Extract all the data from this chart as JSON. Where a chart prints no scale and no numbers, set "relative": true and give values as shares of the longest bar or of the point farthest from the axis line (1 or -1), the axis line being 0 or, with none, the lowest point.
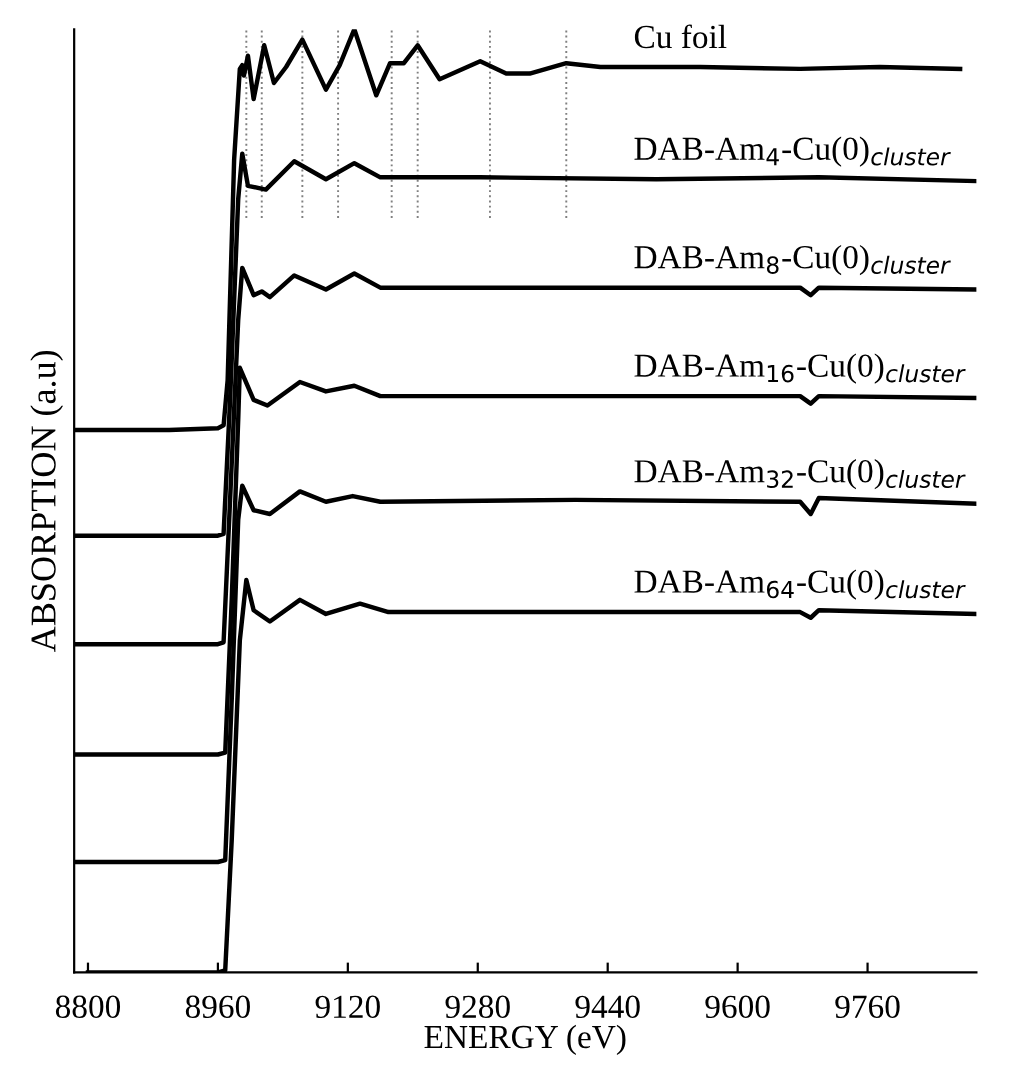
{
  "chart_data": {
    "type": "line",
    "relative": true,
    "xlabel": "ENERGY (eV)",
    "ylabel": "ABSORPTION (a.u)",
    "xlim": [
      8783,
      9894
    ],
    "xticks": [
      8800,
      8960,
      9120,
      9280,
      9440,
      9600,
      9760
    ],
    "grid": false,
    "legend": false,
    "marker": "none",
    "line_style": "solid",
    "series": [
      {
        "name": "Cu foil",
        "color": "#000000",
        "x": [
          8783,
          8900,
          8960,
          8967,
          8972,
          8980,
          8987,
          8990,
          8992,
          8997,
          9004,
          9017,
          9029,
          9044,
          9064,
          9093,
          9110,
          9128,
          9155,
          9172,
          9189,
          9206,
          9233,
          9283,
          9315,
          9344,
          9389,
          9431,
          9554,
          9677,
          9775,
          9874
        ],
        "values": [
          0.575,
          0.575,
          0.577,
          0.58,
          0.628,
          0.862,
          0.958,
          0.962,
          0.951,
          0.972,
          0.926,
          0.983,
          0.943,
          0.96,
          0.989,
          0.936,
          0.962,
          1.0,
          0.93,
          0.964,
          0.964,
          0.983,
          0.947,
          0.966,
          0.953,
          0.953,
          0.964,
          0.96,
          0.96,
          0.958,
          0.96,
          0.958
        ]
      },
      {
        "name": "DAB-Am$_{4}$-Cu(0)$_{cluster}$",
        "color": "#000000",
        "x": [
          8783,
          8960,
          8967,
          8975,
          8985,
          8990,
          8997,
          9019,
          9054,
          9093,
          9128,
          9160,
          9283,
          9500,
          9700,
          9894
        ],
        "values": [
          0.463,
          0.463,
          0.465,
          0.607,
          0.82,
          0.868,
          0.834,
          0.83,
          0.86,
          0.841,
          0.858,
          0.843,
          0.843,
          0.841,
          0.843,
          0.839
        ]
      },
      {
        "name": "DAB-Am$_{8}$-Cu(0)$_{cluster}$",
        "color": "#000000",
        "x": [
          8783,
          8960,
          8967,
          8975,
          8985,
          8990,
          9004,
          9014,
          9024,
          9054,
          9093,
          9128,
          9160,
          9400,
          9677,
          9690,
          9700,
          9894
        ],
        "values": [
          0.348,
          0.348,
          0.35,
          0.501,
          0.692,
          0.747,
          0.718,
          0.722,
          0.716,
          0.739,
          0.724,
          0.741,
          0.726,
          0.726,
          0.726,
          0.718,
          0.726,
          0.724
        ]
      },
      {
        "name": "DAB-Am$_{16}$-Cu(0)$_{cluster}$",
        "color": "#000000",
        "x": [
          8783,
          8960,
          8969,
          8977,
          8985,
          8987,
          9004,
          9021,
          9061,
          9093,
          9128,
          9160,
          9400,
          9677,
          9690,
          9700,
          9894
        ],
        "values": [
          0.231,
          0.231,
          0.233,
          0.395,
          0.586,
          0.641,
          0.607,
          0.601,
          0.626,
          0.616,
          0.622,
          0.611,
          0.611,
          0.611,
          0.603,
          0.611,
          0.609
        ]
      },
      {
        "name": "DAB-Am$_{32}$-Cu(0)$_{cluster}$",
        "color": "#000000",
        "x": [
          8783,
          8960,
          8969,
          8977,
          8985,
          8990,
          9004,
          9024,
          9061,
          9093,
          9126,
          9160,
          9400,
          9677,
          9690,
          9700,
          9894
        ],
        "values": [
          0.117,
          0.117,
          0.119,
          0.289,
          0.48,
          0.516,
          0.49,
          0.486,
          0.51,
          0.499,
          0.505,
          0.499,
          0.501,
          0.499,
          0.486,
          0.503,
          0.497
        ]
      },
      {
        "name": "DAB-Am$_{64}$-Cu(0)$_{cluster}$",
        "color": "#000000",
        "x": [
          8800,
          8960,
          8969,
          8977,
          8987,
          8995,
          9004,
          9024,
          9061,
          9093,
          9135,
          9170,
          9400,
          9677,
          9690,
          9700,
          9894
        ],
        "values": [
          0.0,
          0.0,
          0.002,
          0.14,
          0.352,
          0.416,
          0.384,
          0.372,
          0.395,
          0.38,
          0.391,
          0.382,
          0.382,
          0.382,
          0.376,
          0.384,
          0.38
        ]
      }
    ],
    "ref_lines": [
      {
        "axis": "x",
        "value": 8995,
        "color": "#808080",
        "line_style": "dotted"
      },
      {
        "axis": "x",
        "value": 9014,
        "color": "#808080",
        "line_style": "dotted"
      },
      {
        "axis": "x",
        "value": 9064,
        "color": "#808080",
        "line_style": "dotted"
      },
      {
        "axis": "x",
        "value": 9108,
        "color": "#808080",
        "line_style": "dotted"
      },
      {
        "axis": "x",
        "value": 9174,
        "color": "#808080",
        "line_style": "dotted"
      },
      {
        "axis": "x",
        "value": 9206,
        "color": "#808080",
        "line_style": "dotted"
      },
      {
        "axis": "x",
        "value": 9295,
        "color": "#808080",
        "line_style": "dotted"
      },
      {
        "axis": "x",
        "value": 9389,
        "color": "#808080",
        "line_style": "dotted"
      }
    ]
  }
}
